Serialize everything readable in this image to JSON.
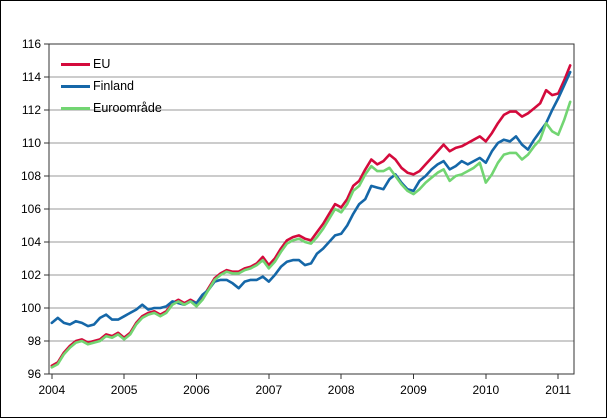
{
  "chart_data": {
    "type": "line",
    "title": "",
    "xlabel": "",
    "ylabel": "",
    "x_unit": "month",
    "x_range": [
      "2004-01",
      "2011-03"
    ],
    "x_ticks": [
      "2004",
      "2005",
      "2006",
      "2007",
      "2008",
      "2009",
      "2010",
      "2011"
    ],
    "y_ticks": [
      96,
      98,
      100,
      102,
      104,
      106,
      108,
      110,
      112,
      114,
      116
    ],
    "ylim": [
      96,
      116
    ],
    "grid": true,
    "legend_position": "top-left",
    "colors": {
      "eu": "#d40a3c",
      "finland": "#1567a8",
      "euro_area": "#72d572",
      "gridline": "#999999",
      "axis": "#333333",
      "text": "#000000"
    },
    "series": [
      {
        "name": "EU",
        "color_key": "eu",
        "values": [
          96.5,
          96.7,
          97.3,
          97.7,
          98.0,
          98.1,
          97.9,
          98.0,
          98.1,
          98.4,
          98.3,
          98.5,
          98.2,
          98.5,
          99.1,
          99.5,
          99.7,
          99.8,
          99.6,
          99.8,
          100.3,
          100.5,
          100.3,
          100.5,
          100.3,
          100.6,
          101.2,
          101.8,
          102.1,
          102.3,
          102.2,
          102.2,
          102.4,
          102.5,
          102.7,
          103.1,
          102.6,
          103.0,
          103.6,
          104.1,
          104.3,
          104.4,
          104.2,
          104.1,
          104.6,
          105.1,
          105.7,
          106.3,
          106.1,
          106.6,
          107.4,
          107.7,
          108.4,
          109.0,
          108.7,
          108.9,
          109.3,
          109.0,
          108.5,
          108.2,
          108.1,
          108.3,
          108.7,
          109.1,
          109.5,
          109.9,
          109.5,
          109.7,
          109.8,
          110.0,
          110.2,
          110.4,
          110.1,
          110.6,
          111.2,
          111.7,
          111.9,
          111.9,
          111.6,
          111.8,
          112.1,
          112.4,
          113.2,
          112.9,
          113.0,
          113.8,
          114.7
        ]
      },
      {
        "name": "Finland",
        "color_key": "finland",
        "values": [
          99.1,
          99.4,
          99.1,
          99.0,
          99.2,
          99.1,
          98.9,
          99.0,
          99.4,
          99.6,
          99.3,
          99.3,
          99.5,
          99.7,
          99.9,
          100.2,
          99.9,
          100.0,
          100.0,
          100.1,
          100.4,
          100.3,
          100.2,
          100.4,
          100.3,
          100.8,
          101.1,
          101.6,
          101.7,
          101.7,
          101.5,
          101.2,
          101.6,
          101.7,
          101.7,
          101.9,
          101.6,
          102.0,
          102.5,
          102.8,
          102.9,
          102.9,
          102.6,
          102.7,
          103.3,
          103.6,
          104.0,
          104.4,
          104.5,
          105.0,
          105.7,
          106.3,
          106.6,
          107.4,
          107.3,
          107.2,
          107.8,
          108.1,
          107.6,
          107.2,
          107.1,
          107.7,
          108.0,
          108.4,
          108.7,
          108.9,
          108.4,
          108.6,
          108.9,
          108.7,
          108.9,
          109.1,
          108.8,
          109.5,
          110.0,
          110.2,
          110.1,
          110.4,
          109.9,
          109.6,
          110.2,
          110.7,
          111.2,
          112.0,
          112.7,
          113.5,
          114.3
        ]
      },
      {
        "name": "Euroområde",
        "color_key": "euro_area",
        "values": [
          96.4,
          96.6,
          97.2,
          97.6,
          97.9,
          98.0,
          97.8,
          97.9,
          98.0,
          98.3,
          98.2,
          98.4,
          98.1,
          98.4,
          99.0,
          99.4,
          99.6,
          99.7,
          99.5,
          99.7,
          100.2,
          100.4,
          100.2,
          100.4,
          100.1,
          100.5,
          101.1,
          101.7,
          102.0,
          102.2,
          102.1,
          102.1,
          102.3,
          102.4,
          102.6,
          102.9,
          102.4,
          102.8,
          103.4,
          103.9,
          104.1,
          104.2,
          104.0,
          103.9,
          104.3,
          104.8,
          105.4,
          106.0,
          105.8,
          106.3,
          107.1,
          107.4,
          108.1,
          108.6,
          108.3,
          108.3,
          108.5,
          108.0,
          107.5,
          107.1,
          106.9,
          107.2,
          107.6,
          107.9,
          108.2,
          108.4,
          107.7,
          108.0,
          108.1,
          108.3,
          108.5,
          108.8,
          107.6,
          108.1,
          108.8,
          109.3,
          109.4,
          109.4,
          109.0,
          109.3,
          109.8,
          110.2,
          111.2,
          110.7,
          110.5,
          111.4,
          112.5
        ]
      }
    ]
  }
}
